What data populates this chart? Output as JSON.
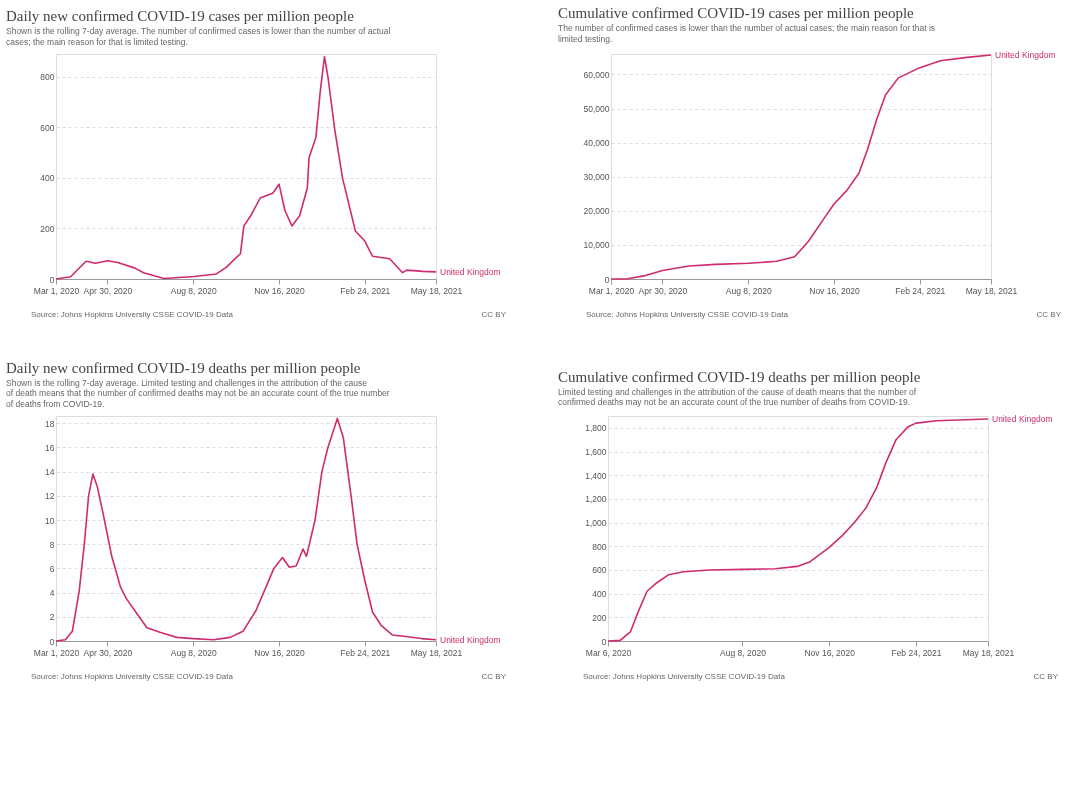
{
  "chart_data": [
    {
      "type": "line",
      "title": "Daily new confirmed COVID-19 cases per million people",
      "subtitle": "Shown is the rolling 7-day average. The number of confirmed cases is lower than the number of actual cases; the main reason for that is limited testing.",
      "annotations": [
        "Source: Johns Hopkins University CSSE COVID-19 Data",
        "CC BY"
      ],
      "xlim": [
        "2020-03-01",
        "2021-05-18"
      ],
      "xticks": [
        {
          "value": "2020-03-01",
          "label": "Mar 1, 2020"
        },
        {
          "value": "2020-04-30",
          "label": "Apr 30, 2020"
        },
        {
          "value": "2020-08-08",
          "label": "Aug 8, 2020"
        },
        {
          "value": "2020-11-16",
          "label": "Nov 16, 2020"
        },
        {
          "value": "2021-02-24",
          "label": "Feb 24, 2021"
        },
        {
          "value": "2021-05-18",
          "label": "May 18, 2021"
        }
      ],
      "ylim": [
        0,
        890
      ],
      "yticks": [
        0,
        200,
        400,
        600,
        800
      ],
      "grid": "y",
      "series": [
        {
          "name": "United Kingdom",
          "color": "#ce2c6e",
          "x": [
            "2020-03-01",
            "2020-03-18",
            "2020-04-05",
            "2020-04-16",
            "2020-04-30",
            "2020-05-12",
            "2020-06-01",
            "2020-06-11",
            "2020-07-05",
            "2020-08-09",
            "2020-09-04",
            "2020-09-15",
            "2020-10-02",
            "2020-10-06",
            "2020-10-14",
            "2020-10-25",
            "2020-11-09",
            "2020-11-16",
            "2020-11-23",
            "2020-12-01",
            "2020-12-10",
            "2020-12-19",
            "2020-12-21",
            "2020-12-29",
            "2021-01-03",
            "2021-01-08",
            "2021-01-12",
            "2021-01-20",
            "2021-01-29",
            "2021-02-13",
            "2021-02-24",
            "2021-03-05",
            "2021-03-25",
            "2021-04-09",
            "2021-04-14",
            "2021-05-03",
            "2021-05-18"
          ],
          "values": [
            0,
            9,
            70,
            62,
            72,
            65,
            43,
            25,
            2,
            10,
            20,
            45,
            100,
            210,
            250,
            320,
            340,
            375,
            270,
            210,
            250,
            360,
            480,
            560,
            740,
            880,
            800,
            590,
            400,
            190,
            150,
            90,
            80,
            25,
            35,
            30,
            28
          ]
        }
      ]
    },
    {
      "type": "line",
      "title": "Cumulative confirmed COVID-19 cases per million people",
      "subtitle": "The number of confirmed cases is lower than the number of actual cases; the main reason for that is limited testing.",
      "annotations": [
        "Source: Johns Hopkins University CSSE COVID-19 Data",
        "CC BY"
      ],
      "xlim": [
        "2020-03-01",
        "2021-05-18"
      ],
      "xticks": [
        {
          "value": "2020-03-01",
          "label": "Mar 1, 2020"
        },
        {
          "value": "2020-04-30",
          "label": "Apr 30, 2020"
        },
        {
          "value": "2020-08-08",
          "label": "Aug 8, 2020"
        },
        {
          "value": "2020-11-16",
          "label": "Nov 16, 2020"
        },
        {
          "value": "2021-02-24",
          "label": "Feb 24, 2021"
        },
        {
          "value": "2021-05-18",
          "label": "May 18, 2021"
        }
      ],
      "ylim": [
        0,
        66000
      ],
      "yticks": [
        0,
        {
          "value": 10000,
          "label": "10,000"
        },
        {
          "value": 20000,
          "label": "20,000"
        },
        {
          "value": 30000,
          "label": "30,000"
        },
        {
          "value": 40000,
          "label": "40,000"
        },
        {
          "value": 50000,
          "label": "50,000"
        },
        {
          "value": 60000,
          "label": "60,000"
        }
      ],
      "grid": "y",
      "series": [
        {
          "name": "United Kingdom",
          "color": "#ce2c6e",
          "x": [
            "2020-03-01",
            "2020-03-20",
            "2020-04-10",
            "2020-04-30",
            "2020-05-31",
            "2020-07-01",
            "2020-08-08",
            "2020-09-10",
            "2020-10-01",
            "2020-10-17",
            "2020-11-05",
            "2020-11-16",
            "2020-12-01",
            "2020-12-15",
            "2020-12-25",
            "2021-01-05",
            "2021-01-15",
            "2021-01-30",
            "2021-02-24",
            "2021-03-20",
            "2021-04-20",
            "2021-05-18"
          ],
          "values": [
            0,
            50,
            1000,
            2500,
            3800,
            4300,
            4600,
            5200,
            6500,
            11000,
            18000,
            22000,
            26000,
            31000,
            38000,
            47000,
            54000,
            59000,
            62000,
            64000,
            65000,
            65700
          ]
        }
      ]
    },
    {
      "type": "line",
      "title": "Daily new confirmed COVID-19 deaths per million people",
      "subtitle": "Shown is the rolling 7-day average. Limited testing and challenges in the attribution of the cause of death means that the number of confirmed deaths may not be an accurate count of the true number of deaths from COVID-19.",
      "annotations": [
        "Source: Johns Hopkins University CSSE COVID-19 Data",
        "CC BY"
      ],
      "xlim": [
        "2020-03-01",
        "2021-05-18"
      ],
      "xticks": [
        {
          "value": "2020-03-01",
          "label": "Mar 1, 2020"
        },
        {
          "value": "2020-04-30",
          "label": "Apr 30, 2020"
        },
        {
          "value": "2020-08-08",
          "label": "Aug 8, 2020"
        },
        {
          "value": "2020-11-16",
          "label": "Nov 16, 2020"
        },
        {
          "value": "2021-02-24",
          "label": "Feb 24, 2021"
        },
        {
          "value": "2021-05-18",
          "label": "May 18, 2021"
        }
      ],
      "ylim": [
        0,
        18.6
      ],
      "yticks": [
        0,
        2,
        4,
        6,
        8,
        10,
        12,
        14,
        16,
        18
      ],
      "grid": "y",
      "series": [
        {
          "name": "United Kingdom",
          "color": "#ce2c6e",
          "x": [
            "2020-03-01",
            "2020-03-12",
            "2020-03-20",
            "2020-03-28",
            "2020-04-03",
            "2020-04-08",
            "2020-04-13",
            "2020-04-18",
            "2020-04-25",
            "2020-05-05",
            "2020-05-15",
            "2020-05-22",
            "2020-06-01",
            "2020-06-15",
            "2020-07-01",
            "2020-07-20",
            "2020-08-08",
            "2020-09-01",
            "2020-09-20",
            "2020-10-05",
            "2020-10-20",
            "2020-11-01",
            "2020-11-10",
            "2020-11-20",
            "2020-11-28",
            "2020-12-06",
            "2020-12-14",
            "2020-12-18",
            "2020-12-28",
            "2021-01-05",
            "2021-01-12",
            "2021-01-23",
            "2021-01-30",
            "2021-02-08",
            "2021-02-15",
            "2021-02-24",
            "2021-03-05",
            "2021-03-15",
            "2021-03-28",
            "2021-04-15",
            "2021-05-01",
            "2021-05-18"
          ],
          "values": [
            0,
            0.1,
            0.8,
            4.1,
            8,
            12,
            13.8,
            12.8,
            10.5,
            7,
            4.5,
            3.5,
            2.5,
            1.1,
            0.7,
            0.3,
            0.2,
            0.1,
            0.3,
            0.8,
            2.5,
            4.5,
            6,
            6.9,
            6.1,
            6.2,
            7.6,
            7,
            10,
            14,
            16,
            18.4,
            16.8,
            12,
            8,
            5,
            2.4,
            1.3,
            0.5,
            0.35,
            0.2,
            0.1
          ]
        }
      ]
    },
    {
      "type": "line",
      "title": "Cumulative confirmed COVID-19 deaths per million people",
      "subtitle": "Limited testing and challenges in the attribution of the cause of death means that the number of confirmed deaths may not be an accurate count of the true number of deaths from COVID-19.",
      "annotations": [
        "Source: Johns Hopkins University CSSE COVID-19 Data",
        "CC BY"
      ],
      "xlim": [
        "2020-03-06",
        "2021-05-18"
      ],
      "xticks": [
        {
          "value": "2020-03-06",
          "label": "Mar 6, 2020"
        },
        {
          "value": "2020-08-08",
          "label": "Aug 8, 2020"
        },
        {
          "value": "2020-11-16",
          "label": "Nov 16, 2020"
        },
        {
          "value": "2021-02-24",
          "label": "Feb 24, 2021"
        },
        {
          "value": "2021-05-18",
          "label": "May 18, 2021"
        }
      ],
      "ylim": [
        0,
        1900
      ],
      "yticks": [
        0,
        200,
        400,
        600,
        800,
        {
          "value": 1000,
          "label": "1,000"
        },
        {
          "value": 1200,
          "label": "1,200"
        },
        {
          "value": 1400,
          "label": "1,400"
        },
        {
          "value": 1600,
          "label": "1,600"
        },
        {
          "value": 1800,
          "label": "1,800"
        }
      ],
      "grid": "y",
      "series": [
        {
          "name": "United Kingdom",
          "color": "#ce2c6e",
          "x": [
            "2020-03-06",
            "2020-03-20",
            "2020-04-01",
            "2020-04-10",
            "2020-04-20",
            "2020-05-01",
            "2020-05-15",
            "2020-06-01",
            "2020-07-01",
            "2020-08-08",
            "2020-09-15",
            "2020-10-10",
            "2020-10-25",
            "2020-11-16",
            "2020-12-01",
            "2020-12-15",
            "2020-12-28",
            "2021-01-10",
            "2021-01-20",
            "2021-02-01",
            "2021-02-15",
            "2021-02-24",
            "2021-03-20",
            "2021-05-18"
          ],
          "values": [
            0,
            5,
            80,
            250,
            420,
            490,
            560,
            585,
            600,
            605,
            610,
            630,
            670,
            790,
            890,
            1000,
            1120,
            1300,
            1500,
            1700,
            1810,
            1840,
            1860,
            1875
          ]
        }
      ]
    }
  ]
}
